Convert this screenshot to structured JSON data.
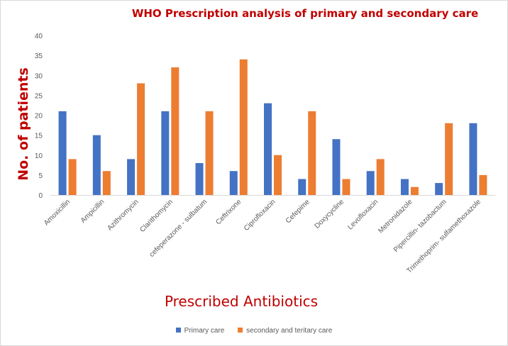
{
  "chart_data": {
    "type": "bar",
    "title": "WHO Prescription analysis of primary and secondary care",
    "xlabel": "Prescribed Antibiotics",
    "ylabel": "No. of patients",
    "ylim": [
      0,
      40
    ],
    "yticks": [
      0,
      5,
      10,
      15,
      20,
      25,
      30,
      35,
      40
    ],
    "grid": false,
    "legend_position": "bottom",
    "categories": [
      "Amoxicillin",
      "Ampicillin",
      "Azithromycin",
      "Clarithomycin",
      "cefeperazone - sulbatum",
      "Ceftrixone",
      "Ciprofloxacin",
      "Cefepime",
      "Doxycycline",
      "Levofloxacin",
      "Metronidazole",
      "Pipercillin- tazobactum",
      "Trimethoprim- sulfamethoxazole"
    ],
    "series": [
      {
        "name": "Primary care",
        "color": "#4472c4",
        "values": [
          21,
          15,
          9,
          21,
          8,
          6,
          23,
          4,
          14,
          6,
          4,
          3,
          18
        ]
      },
      {
        "name": "secondary and teritary care",
        "color": "#ed7d31",
        "values": [
          9,
          6,
          28,
          32,
          21,
          34,
          10,
          21,
          4,
          9,
          2,
          18,
          5
        ]
      }
    ]
  }
}
